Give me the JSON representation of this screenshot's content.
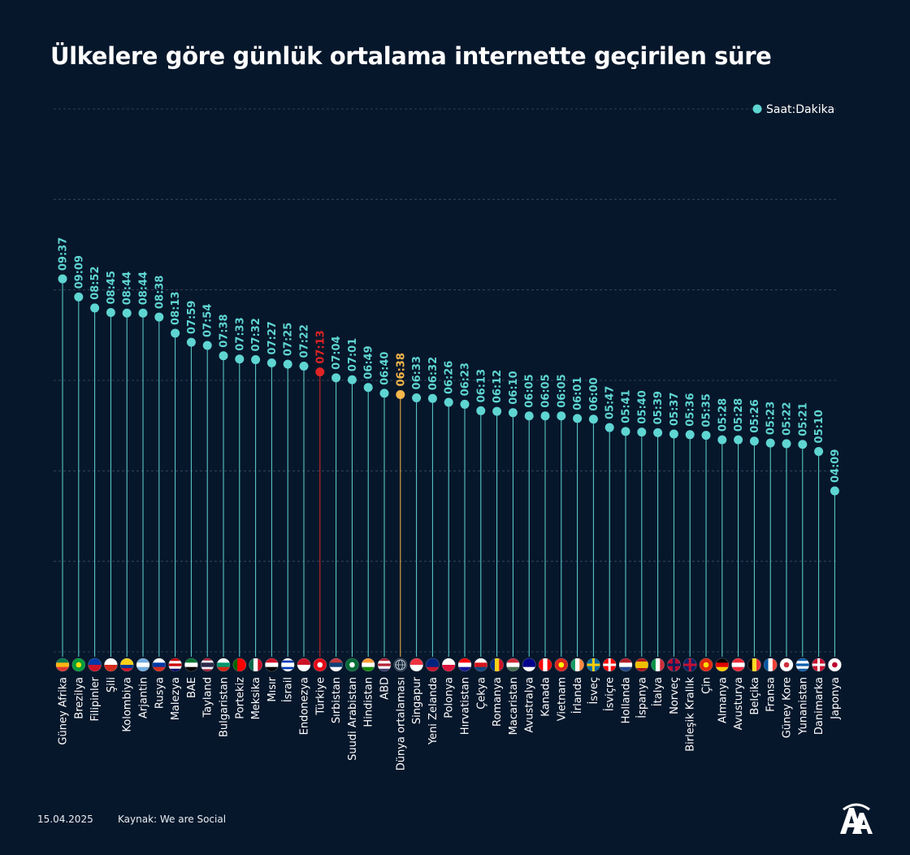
{
  "title": "Ülkelere göre günlük ortalama internette geçirilen süre",
  "footer": {
    "date": "15.04.2025",
    "source": "Kaynak: We are Social"
  },
  "logo_text": "AA",
  "colors": {
    "background": "#07172b",
    "series": "#5fd5d2",
    "turkey": "#e02424",
    "world": "#f7b84b",
    "grid": "#3a4d66"
  },
  "chart_data": {
    "type": "lollipop",
    "title": "Ülkelere göre günlük ortalama internette geçirilen süre",
    "legend": {
      "label": "Saat:Dakika",
      "position": "top-right"
    },
    "ylim": [
      0,
      14
    ],
    "grid": true,
    "categories": [
      "Güney Afrika",
      "Brezilya",
      "Filipinler",
      "Şili",
      "Kolombiya",
      "Arjantin",
      "Rusya",
      "Malezya",
      "BAE",
      "Tayland",
      "Bulgaristan",
      "Portekiz",
      "Meksika",
      "Mısır",
      "İsrail",
      "Endonezya",
      "Türkiye",
      "Sırbistan",
      "Suudi Arabistan",
      "Hindistan",
      "ABD",
      "Dünya ortalaması",
      "Singapur",
      "Yeni Zelanda",
      "Polonya",
      "Hırvatistan",
      "Çekya",
      "Romanya",
      "Macaristan",
      "Avustralya",
      "Kanada",
      "Vietnam",
      "İrlanda",
      "İsveç",
      "İsviçre",
      "Hollanda",
      "İspanya",
      "İtalya",
      "Norveç",
      "Birleşik Krallık",
      "Çin",
      "Almanya",
      "Avusturya",
      "Belçika",
      "Fransa",
      "Güney Kore",
      "Yunanistan",
      "Danimarka",
      "Japonya"
    ],
    "labels": [
      "09:37",
      "09:09",
      "08:52",
      "08:45",
      "08:44",
      "08:44",
      "08:38",
      "08:13",
      "07:59",
      "07:54",
      "07:38",
      "07:33",
      "07:32",
      "07:27",
      "07:25",
      "07:22",
      "07:13",
      "07:04",
      "07:01",
      "06:49",
      "06:40",
      "06:38",
      "06:33",
      "06:32",
      "06:26",
      "06:23",
      "06:13",
      "06:12",
      "06:10",
      "06:05",
      "06:05",
      "06:05",
      "06:01",
      "06:00",
      "05:47",
      "05:41",
      "05:40",
      "05:39",
      "05:37",
      "05:36",
      "05:35",
      "05:28",
      "05:28",
      "05:26",
      "05:23",
      "05:22",
      "05:21",
      "05:10",
      "04:09"
    ],
    "highlight": {
      "Türkiye": "turkey",
      "Dünya ortalaması": "world"
    },
    "flags": [
      {
        "t": "h",
        "c": [
          "#007a4d",
          "#ffb612",
          "#de3831"
        ]
      },
      {
        "t": "d",
        "bg": "#009c3b",
        "dot": "#ffdf00"
      },
      {
        "t": "h",
        "c": [
          "#0038a8",
          "#ce1126"
        ]
      },
      {
        "t": "h",
        "c": [
          "#ffffff",
          "#d52b1e"
        ]
      },
      {
        "t": "h",
        "c": [
          "#fcd116",
          "#fcd116",
          "#003893",
          "#ce1126"
        ]
      },
      {
        "t": "h",
        "c": [
          "#74acdf",
          "#ffffff",
          "#74acdf"
        ]
      },
      {
        "t": "h",
        "c": [
          "#ffffff",
          "#0039a6",
          "#d52b1e"
        ]
      },
      {
        "t": "h",
        "c": [
          "#cc0000",
          "#ffffff",
          "#cc0000",
          "#ffffff",
          "#010066"
        ]
      },
      {
        "t": "h",
        "c": [
          "#00732f",
          "#ffffff",
          "#000000"
        ]
      },
      {
        "t": "h",
        "c": [
          "#a51931",
          "#f4f5f8",
          "#2d2a4a",
          "#2d2a4a",
          "#f4f5f8",
          "#a51931"
        ]
      },
      {
        "t": "h",
        "c": [
          "#ffffff",
          "#00966e",
          "#d62612"
        ]
      },
      {
        "t": "v",
        "c": [
          "#006600",
          "#ff0000",
          "#ff0000"
        ]
      },
      {
        "t": "v",
        "c": [
          "#006847",
          "#ffffff",
          "#ce1126"
        ]
      },
      {
        "t": "h",
        "c": [
          "#ce1126",
          "#ffffff",
          "#000000"
        ]
      },
      {
        "t": "h",
        "c": [
          "#ffffff",
          "#0038b8",
          "#ffffff",
          "#ffffff",
          "#0038b8",
          "#ffffff"
        ]
      },
      {
        "t": "h",
        "c": [
          "#ce1126",
          "#ffffff"
        ]
      },
      {
        "t": "d",
        "bg": "#e30a17",
        "dot": "#ffffff"
      },
      {
        "t": "h",
        "c": [
          "#c6363c",
          "#0c4076",
          "#ffffff"
        ]
      },
      {
        "t": "d",
        "bg": "#006c35",
        "dot": "#ffffff"
      },
      {
        "t": "h",
        "c": [
          "#ff9933",
          "#ffffff",
          "#138808"
        ]
      },
      {
        "t": "h",
        "c": [
          "#b22234",
          "#ffffff",
          "#b22234",
          "#ffffff",
          "#3c3b6e"
        ]
      },
      {
        "t": "g",
        "bg": "#1a2a3d"
      },
      {
        "t": "h",
        "c": [
          "#ef3340",
          "#ffffff"
        ]
      },
      {
        "t": "h",
        "c": [
          "#00247d",
          "#00247d",
          "#cc142b"
        ]
      },
      {
        "t": "h",
        "c": [
          "#ffffff",
          "#dc143c"
        ]
      },
      {
        "t": "h",
        "c": [
          "#ff0000",
          "#ffffff",
          "#171796"
        ]
      },
      {
        "t": "h",
        "c": [
          "#ffffff",
          "#d7141a",
          "#11457e"
        ]
      },
      {
        "t": "v",
        "c": [
          "#002b7f",
          "#fcd116",
          "#ce1126"
        ]
      },
      {
        "t": "h",
        "c": [
          "#ce2939",
          "#ffffff",
          "#477050"
        ]
      },
      {
        "t": "h",
        "c": [
          "#00008b",
          "#00008b",
          "#ffffff"
        ]
      },
      {
        "t": "v",
        "c": [
          "#ff0000",
          "#ffffff",
          "#ff0000"
        ]
      },
      {
        "t": "d",
        "bg": "#da251d",
        "dot": "#ffff00"
      },
      {
        "t": "v",
        "c": [
          "#169b62",
          "#ffffff",
          "#ff883e"
        ]
      },
      {
        "t": "c",
        "bg": "#006aa7",
        "cr": "#fecc00"
      },
      {
        "t": "c",
        "bg": "#ff0000",
        "cr": "#ffffff"
      },
      {
        "t": "h",
        "c": [
          "#ae1c28",
          "#ffffff",
          "#21468b"
        ]
      },
      {
        "t": "h",
        "c": [
          "#aa151b",
          "#f1bf00",
          "#f1bf00",
          "#aa151b"
        ]
      },
      {
        "t": "v",
        "c": [
          "#009246",
          "#ffffff",
          "#ce2b37"
        ]
      },
      {
        "t": "c",
        "bg": "#ba0c2f",
        "cr": "#00205b"
      },
      {
        "t": "c",
        "bg": "#012169",
        "cr": "#c8102e"
      },
      {
        "t": "d",
        "bg": "#de2910",
        "dot": "#ffde00"
      },
      {
        "t": "h",
        "c": [
          "#000000",
          "#dd0000",
          "#ffce00"
        ]
      },
      {
        "t": "h",
        "c": [
          "#ed2939",
          "#ffffff",
          "#ed2939"
        ]
      },
      {
        "t": "v",
        "c": [
          "#000000",
          "#fdda24",
          "#ef3340"
        ]
      },
      {
        "t": "v",
        "c": [
          "#0055a4",
          "#ffffff",
          "#ef4135"
        ]
      },
      {
        "t": "d",
        "bg": "#ffffff",
        "dot": "#cd2e3a"
      },
      {
        "t": "h",
        "c": [
          "#0d5eaf",
          "#ffffff",
          "#0d5eaf",
          "#ffffff",
          "#0d5eaf"
        ]
      },
      {
        "t": "c",
        "bg": "#c8102e",
        "cr": "#ffffff"
      },
      {
        "t": "d",
        "bg": "#ffffff",
        "dot": "#bc002d"
      }
    ]
  }
}
